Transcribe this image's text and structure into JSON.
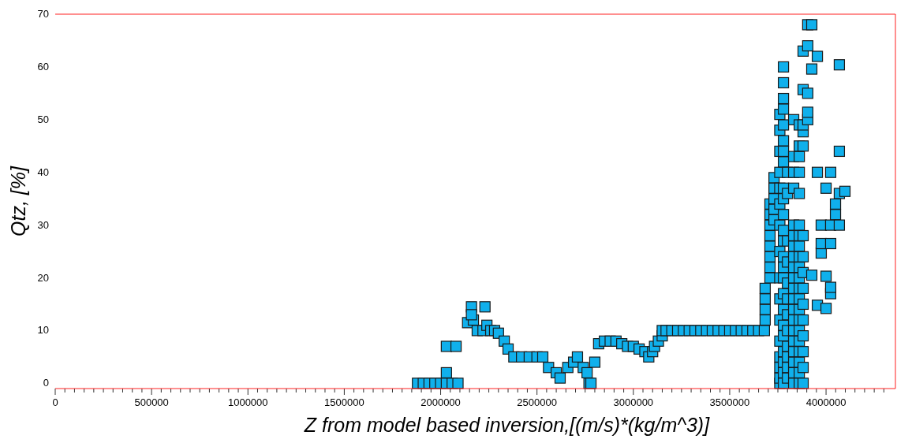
{
  "chart_data": {
    "type": "scatter",
    "xlabel": "Z from model based inversion,[(m/s)*(kg/m^3)]",
    "ylabel": "Qtz, [%]",
    "marker": "square",
    "grid": false,
    "xlim": [
      0,
      4360000
    ],
    "ylim": [
      -1,
      70
    ],
    "yticks": [
      0,
      10,
      20,
      30,
      40,
      50,
      60,
      70
    ],
    "xticks": [
      0,
      {
        "value": 50000,
        "label": null
      },
      {
        "value": 100000,
        "label": null
      },
      {
        "value": 150000,
        "label": null
      },
      {
        "value": 200000,
        "label": null
      },
      {
        "value": 250000,
        "label": null
      },
      {
        "value": 300000,
        "label": null
      },
      {
        "value": 350000,
        "label": null
      },
      {
        "value": 400000,
        "label": null
      },
      {
        "value": 450000,
        "label": null
      },
      500000,
      {
        "value": 550000,
        "label": null
      },
      {
        "value": 600000,
        "label": null
      },
      {
        "value": 650000,
        "label": null
      },
      {
        "value": 700000,
        "label": null
      },
      {
        "value": 750000,
        "label": null
      },
      {
        "value": 800000,
        "label": null
      },
      {
        "value": 850000,
        "label": null
      },
      {
        "value": 900000,
        "label": null
      },
      {
        "value": 950000,
        "label": null
      },
      1000000,
      {
        "value": 1050000,
        "label": null
      },
      {
        "value": 1100000,
        "label": null
      },
      {
        "value": 1150000,
        "label": null
      },
      {
        "value": 1200000,
        "label": null
      },
      {
        "value": 1250000,
        "label": null
      },
      {
        "value": 1300000,
        "label": null
      },
      {
        "value": 1350000,
        "label": null
      },
      {
        "value": 1400000,
        "label": null
      },
      {
        "value": 1450000,
        "label": null
      },
      1500000,
      {
        "value": 1550000,
        "label": null
      },
      {
        "value": 1600000,
        "label": null
      },
      {
        "value": 1650000,
        "label": null
      },
      {
        "value": 1700000,
        "label": null
      },
      {
        "value": 1750000,
        "label": null
      },
      {
        "value": 1800000,
        "label": null
      },
      {
        "value": 1850000,
        "label": null
      },
      {
        "value": 1900000,
        "label": null
      },
      {
        "value": 1950000,
        "label": null
      },
      2000000,
      {
        "value": 2050000,
        "label": null
      },
      {
        "value": 2100000,
        "label": null
      },
      {
        "value": 2150000,
        "label": null
      },
      {
        "value": 2200000,
        "label": null
      },
      {
        "value": 2250000,
        "label": null
      },
      {
        "value": 2300000,
        "label": null
      },
      {
        "value": 2350000,
        "label": null
      },
      {
        "value": 2400000,
        "label": null
      },
      {
        "value": 2450000,
        "label": null
      },
      2500000,
      {
        "value": 2550000,
        "label": null
      },
      {
        "value": 2600000,
        "label": null
      },
      {
        "value": 2650000,
        "label": null
      },
      {
        "value": 2700000,
        "label": null
      },
      {
        "value": 2750000,
        "label": null
      },
      {
        "value": 2800000,
        "label": null
      },
      {
        "value": 2850000,
        "label": null
      },
      {
        "value": 2900000,
        "label": null
      },
      {
        "value": 2950000,
        "label": null
      },
      3000000,
      {
        "value": 3050000,
        "label": null
      },
      {
        "value": 3100000,
        "label": null
      },
      {
        "value": 3150000,
        "label": null
      },
      {
        "value": 3200000,
        "label": null
      },
      {
        "value": 3250000,
        "label": null
      },
      {
        "value": 3300000,
        "label": null
      },
      {
        "value": 3350000,
        "label": null
      },
      {
        "value": 3400000,
        "label": null
      },
      {
        "value": 3450000,
        "label": null
      },
      3500000,
      {
        "value": 3550000,
        "label": null
      },
      {
        "value": 3600000,
        "label": null
      },
      {
        "value": 3650000,
        "label": null
      },
      {
        "value": 3700000,
        "label": null
      },
      {
        "value": 3750000,
        "label": null
      },
      {
        "value": 3800000,
        "label": null
      },
      {
        "value": 3850000,
        "label": null
      },
      {
        "value": 3900000,
        "label": null
      },
      {
        "value": 3950000,
        "label": null
      },
      4000000,
      {
        "value": 4050000,
        "label": null
      },
      {
        "value": 4100000,
        "label": null
      },
      {
        "value": 4150000,
        "label": null
      },
      {
        "value": 4200000,
        "label": null
      },
      {
        "value": 4250000,
        "label": null
      },
      {
        "value": 4300000,
        "label": null
      }
    ],
    "series": [
      {
        "color": "#10b0ec",
        "x": [
          1880000,
          1910000,
          1940000,
          1970000,
          2000000,
          2030000,
          2060000,
          2090000,
          2030000,
          2030000,
          2080000,
          2140000,
          2170000,
          2160000,
          2160000,
          2230000,
          2190000,
          2220000,
          2240000,
          2260000,
          2280000,
          2300000,
          2330000,
          2350000,
          2380000,
          2420000,
          2460000,
          2500000,
          2530000,
          2560000,
          2600000,
          2620000,
          2660000,
          2690000,
          2710000,
          2740000,
          2760000,
          2770000,
          2780000,
          2800000,
          2820000,
          2850000,
          2880000,
          2910000,
          2940000,
          2970000,
          3000000,
          3030000,
          3060000,
          3080000,
          3100000,
          3110000,
          3130000,
          3150000,
          3150000,
          3170000,
          3200000,
          3230000,
          3260000,
          3290000,
          3320000,
          3350000,
          3380000,
          3410000,
          3440000,
          3470000,
          3500000,
          3530000,
          3560000,
          3590000,
          3620000,
          3650000,
          3680000,
          3684000,
          3684000,
          3684000,
          3684000,
          3709000,
          3709000,
          3709000,
          3709000,
          3709000,
          3709000,
          3709000,
          3709000,
          3730000,
          3730000,
          3730000,
          3730000,
          3730000,
          3760000,
          3760000,
          3760000,
          3760000,
          3760000,
          3760000,
          3760000,
          3760000,
          3760000,
          3760000,
          3760000,
          3760000,
          3760000,
          3760000,
          3760000,
          3760000,
          3779000,
          3779000,
          3779000,
          3779000,
          3779000,
          3779000,
          3779000,
          3779000,
          3779000,
          3779000,
          3779000,
          3779000,
          3779000,
          3779000,
          3779000,
          3779000,
          3779000,
          3779000,
          3779000,
          3779000,
          3779000,
          3779000,
          3779000,
          3779000,
          3800000,
          3800000,
          3800000,
          3800000,
          3800000,
          3800000,
          3800000,
          3800000,
          3800000,
          3800000,
          3800000,
          3800000,
          3832000,
          3832000,
          3832000,
          3832000,
          3832000,
          3832000,
          3832000,
          3832000,
          3832000,
          3832000,
          3832000,
          3832000,
          3832000,
          3832000,
          3832000,
          3832000,
          3832000,
          3832000,
          3832000,
          3832000,
          3861000,
          3861000,
          3861000,
          3861000,
          3861000,
          3861000,
          3861000,
          3861000,
          3861000,
          3861000,
          3861000,
          3861000,
          3861000,
          3861000,
          3861000,
          3861000,
          3861000,
          3861000,
          3861000,
          3861000,
          3861000,
          3881000,
          3881000,
          3881000,
          3881000,
          3881000,
          3881000,
          3881000,
          3881000,
          3881000,
          3881000,
          3881000,
          3881000,
          3881000,
          3881000,
          3881000,
          3905000,
          3905000,
          3905000,
          3905000,
          3905000,
          3926000,
          3926000,
          3926000,
          3955000,
          3955000,
          3955000,
          3975000,
          3975000,
          3975000,
          4000000,
          4000000,
          4000000,
          4024000,
          4024000,
          4024000,
          4024000,
          4024000,
          4049000,
          4049000,
          4069000,
          4069000,
          4069000,
          4069000,
          4098000
        ],
        "values": [
          0,
          0,
          0,
          0,
          0,
          0,
          0,
          0,
          2,
          7,
          7,
          11.5,
          12,
          14.5,
          13,
          14.5,
          10,
          10,
          11,
          10,
          10,
          9.5,
          8,
          6.5,
          5,
          5,
          5,
          5,
          5,
          3,
          2,
          1,
          3,
          4,
          5,
          3,
          2,
          0,
          0,
          4,
          7.5,
          8,
          8,
          8,
          7.5,
          7,
          7,
          6.5,
          6,
          5,
          6,
          7,
          8,
          9,
          10,
          10,
          10,
          10,
          10,
          10,
          10,
          10,
          10,
          10,
          10,
          10,
          10,
          10,
          10,
          10,
          10,
          10,
          10,
          12,
          14,
          16,
          18,
          20,
          22,
          24,
          26,
          28,
          30,
          32,
          34,
          31,
          33,
          35,
          37,
          39,
          0,
          1,
          3,
          5,
          8,
          12,
          16,
          20,
          25,
          30,
          34,
          37,
          40,
          44,
          48,
          51,
          0,
          2,
          4,
          6,
          9,
          11,
          14,
          17,
          20,
          22,
          24,
          27,
          29,
          32,
          35,
          37,
          42,
          44,
          46,
          49,
          52,
          54,
          57,
          60,
          1,
          3,
          5,
          7,
          10,
          13,
          16,
          19,
          23,
          27,
          36,
          40,
          0,
          2,
          4,
          6,
          8,
          10,
          12,
          14,
          16,
          18,
          20,
          22,
          24,
          26,
          28,
          30,
          37,
          40,
          43,
          50,
          0,
          2,
          4,
          6,
          8,
          10,
          12,
          14,
          16,
          18,
          20,
          22,
          24,
          26,
          28,
          30,
          36,
          40,
          43,
          45,
          49,
          0,
          3,
          6,
          9,
          12,
          15,
          18,
          21,
          24,
          28,
          45,
          47.7,
          49,
          55.7,
          63,
          50,
          51.4,
          55,
          64,
          68,
          20.5,
          59.6,
          68,
          14.8,
          40,
          62,
          24.7,
          26.5,
          30,
          14.2,
          20.3,
          37,
          17,
          18.2,
          26.5,
          30,
          40,
          32,
          34,
          30,
          36,
          44,
          60.4,
          36.4
        ]
      }
    ]
  }
}
